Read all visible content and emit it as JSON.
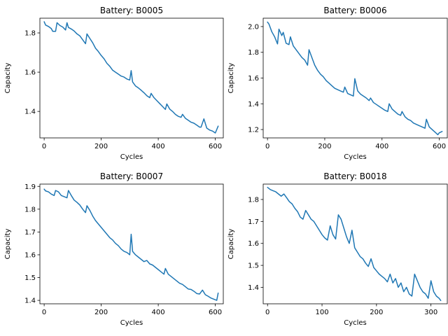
{
  "series_color": "#1f77b4",
  "chart_data": [
    {
      "type": "line",
      "title": "Battery: B0005",
      "xlabel": "Cycles",
      "ylabel": "Capacity",
      "xlim": [
        -15,
        628
      ],
      "ylim": [
        1.265,
        1.875
      ],
      "xticks": [
        0,
        200,
        400,
        600
      ],
      "yticks": [
        1.4,
        1.6,
        1.8
      ],
      "ytick_labels": [
        "1.4",
        "1.6",
        "1.8"
      ],
      "x": [
        0,
        5,
        15,
        25,
        30,
        40,
        45,
        55,
        65,
        75,
        80,
        85,
        95,
        105,
        115,
        125,
        135,
        145,
        150,
        160,
        170,
        180,
        190,
        200,
        210,
        220,
        230,
        240,
        250,
        260,
        270,
        280,
        290,
        300,
        305,
        310,
        320,
        330,
        340,
        350,
        360,
        370,
        375,
        385,
        395,
        405,
        415,
        425,
        430,
        440,
        450,
        460,
        470,
        480,
        485,
        495,
        505,
        515,
        525,
        535,
        545,
        550,
        560,
        570,
        580,
        590,
        600,
        610
      ],
      "values": [
        1.857,
        1.84,
        1.833,
        1.822,
        1.808,
        1.808,
        1.852,
        1.838,
        1.83,
        1.815,
        1.852,
        1.828,
        1.82,
        1.81,
        1.795,
        1.785,
        1.765,
        1.745,
        1.795,
        1.772,
        1.75,
        1.722,
        1.705,
        1.685,
        1.668,
        1.645,
        1.63,
        1.61,
        1.6,
        1.59,
        1.58,
        1.575,
        1.565,
        1.56,
        1.608,
        1.55,
        1.53,
        1.52,
        1.508,
        1.495,
        1.48,
        1.47,
        1.492,
        1.47,
        1.455,
        1.44,
        1.425,
        1.41,
        1.438,
        1.412,
        1.4,
        1.385,
        1.375,
        1.37,
        1.385,
        1.365,
        1.355,
        1.345,
        1.34,
        1.33,
        1.32,
        1.32,
        1.362,
        1.315,
        1.305,
        1.3,
        1.29,
        1.325
      ]
    },
    {
      "type": "line",
      "title": "Battery: B0006",
      "xlabel": "Cycles",
      "ylabel": "Capacity",
      "xlim": [
        -15,
        628
      ],
      "ylim": [
        1.135,
        2.065
      ],
      "xticks": [
        0,
        200,
        400,
        600
      ],
      "yticks": [
        1.2,
        1.4,
        1.6,
        1.8,
        2.0
      ],
      "ytick_labels": [
        "1.2",
        "1.4",
        "1.6",
        "1.8",
        "2.0"
      ],
      "x": [
        0,
        5,
        15,
        25,
        35,
        40,
        50,
        55,
        65,
        75,
        80,
        90,
        100,
        110,
        120,
        130,
        140,
        145,
        155,
        165,
        175,
        185,
        195,
        205,
        215,
        225,
        235,
        245,
        255,
        265,
        270,
        280,
        290,
        300,
        305,
        315,
        325,
        335,
        345,
        355,
        360,
        370,
        380,
        390,
        400,
        410,
        420,
        425,
        435,
        445,
        455,
        465,
        470,
        480,
        490,
        500,
        510,
        520,
        530,
        540,
        550,
        555,
        565,
        575,
        585,
        595,
        600,
        610
      ],
      "values": [
        2.035,
        2.02,
        1.96,
        1.92,
        1.865,
        1.98,
        1.93,
        1.955,
        1.87,
        1.86,
        1.92,
        1.85,
        1.82,
        1.79,
        1.76,
        1.74,
        1.7,
        1.82,
        1.76,
        1.7,
        1.66,
        1.63,
        1.61,
        1.58,
        1.56,
        1.54,
        1.52,
        1.51,
        1.5,
        1.49,
        1.53,
        1.48,
        1.47,
        1.46,
        1.595,
        1.5,
        1.475,
        1.46,
        1.445,
        1.425,
        1.445,
        1.41,
        1.395,
        1.38,
        1.365,
        1.35,
        1.34,
        1.4,
        1.36,
        1.34,
        1.32,
        1.31,
        1.34,
        1.3,
        1.28,
        1.27,
        1.25,
        1.24,
        1.23,
        1.22,
        1.21,
        1.28,
        1.22,
        1.2,
        1.18,
        1.16,
        1.175,
        1.185
      ]
    },
    {
      "type": "line",
      "title": "Battery: B0007",
      "xlabel": "Cycles",
      "ylabel": "Capacity",
      "xlim": [
        -15,
        628
      ],
      "ylim": [
        1.385,
        1.91
      ],
      "xticks": [
        0,
        200,
        400,
        600
      ],
      "yticks": [
        1.4,
        1.5,
        1.6,
        1.7,
        1.8,
        1.9
      ],
      "ytick_labels": [
        "1.4",
        "1.5",
        "1.6",
        "1.7",
        "1.8",
        "1.9"
      ],
      "x": [
        0,
        5,
        15,
        25,
        35,
        40,
        50,
        60,
        70,
        80,
        85,
        95,
        105,
        115,
        125,
        135,
        145,
        150,
        160,
        170,
        180,
        190,
        200,
        210,
        220,
        230,
        240,
        250,
        260,
        270,
        280,
        290,
        300,
        305,
        310,
        320,
        330,
        340,
        350,
        360,
        370,
        380,
        390,
        400,
        410,
        420,
        425,
        435,
        445,
        455,
        465,
        475,
        485,
        495,
        505,
        515,
        525,
        535,
        545,
        555,
        565,
        575,
        585,
        595,
        605,
        610
      ],
      "values": [
        1.888,
        1.88,
        1.876,
        1.866,
        1.86,
        1.882,
        1.876,
        1.86,
        1.855,
        1.85,
        1.882,
        1.86,
        1.84,
        1.83,
        1.818,
        1.8,
        1.785,
        1.815,
        1.795,
        1.77,
        1.75,
        1.735,
        1.72,
        1.705,
        1.69,
        1.675,
        1.665,
        1.65,
        1.64,
        1.625,
        1.615,
        1.61,
        1.6,
        1.69,
        1.615,
        1.6,
        1.59,
        1.58,
        1.57,
        1.575,
        1.56,
        1.555,
        1.545,
        1.535,
        1.525,
        1.515,
        1.54,
        1.515,
        1.505,
        1.495,
        1.485,
        1.475,
        1.47,
        1.46,
        1.45,
        1.448,
        1.44,
        1.43,
        1.428,
        1.445,
        1.425,
        1.418,
        1.41,
        1.405,
        1.4,
        1.432
      ]
    },
    {
      "type": "line",
      "title": "Battery: B0018",
      "xlabel": "Cycles",
      "ylabel": "Capacity",
      "xlim": [
        -8,
        330
      ],
      "ylim": [
        1.325,
        1.87
      ],
      "xticks": [
        0,
        100,
        200,
        300
      ],
      "yticks": [
        1.4,
        1.5,
        1.6,
        1.7,
        1.8
      ],
      "ytick_labels": [
        "1.4",
        "1.5",
        "1.6",
        "1.7",
        "1.8"
      ],
      "x": [
        0,
        5,
        10,
        15,
        20,
        25,
        30,
        35,
        40,
        45,
        50,
        55,
        60,
        65,
        70,
        75,
        80,
        85,
        90,
        95,
        100,
        105,
        110,
        115,
        120,
        125,
        130,
        135,
        140,
        145,
        150,
        155,
        160,
        165,
        170,
        175,
        180,
        185,
        190,
        195,
        200,
        205,
        210,
        215,
        220,
        225,
        230,
        235,
        240,
        245,
        250,
        255,
        260,
        265,
        270,
        275,
        280,
        285,
        290,
        295,
        300,
        305,
        310,
        315,
        318
      ],
      "values": [
        1.855,
        1.845,
        1.84,
        1.835,
        1.825,
        1.815,
        1.825,
        1.808,
        1.79,
        1.78,
        1.76,
        1.745,
        1.72,
        1.71,
        1.75,
        1.73,
        1.71,
        1.7,
        1.68,
        1.66,
        1.64,
        1.625,
        1.615,
        1.68,
        1.64,
        1.62,
        1.73,
        1.71,
        1.67,
        1.63,
        1.6,
        1.66,
        1.58,
        1.56,
        1.54,
        1.53,
        1.51,
        1.495,
        1.53,
        1.49,
        1.475,
        1.46,
        1.45,
        1.44,
        1.425,
        1.46,
        1.42,
        1.44,
        1.4,
        1.42,
        1.38,
        1.4,
        1.37,
        1.36,
        1.46,
        1.43,
        1.4,
        1.38,
        1.37,
        1.35,
        1.43,
        1.38,
        1.36,
        1.35,
        1.34
      ]
    }
  ]
}
